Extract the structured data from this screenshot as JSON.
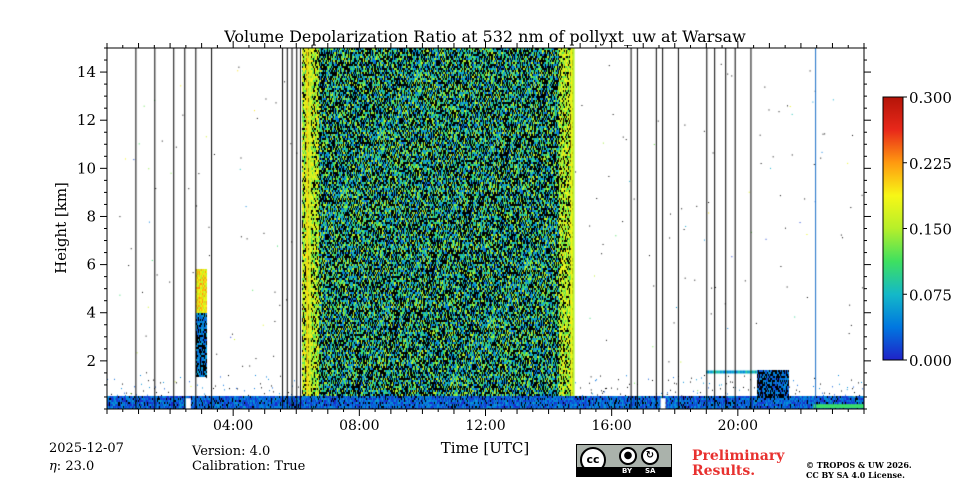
{
  "chart_data": {
    "type": "heatmap",
    "title": "Volume Depolarization Ratio at 532 nm of pollyxt_uw at Warsaw",
    "xlabel": "Time [UTC]",
    "ylabel": "Height [km]",
    "xlim_hours": [
      0,
      24
    ],
    "ylim_km": [
      0,
      15
    ],
    "x_ticks": [
      {
        "hour": 4,
        "label": "04:00"
      },
      {
        "hour": 8,
        "label": "08:00"
      },
      {
        "hour": 12,
        "label": "12:00"
      },
      {
        "hour": 16,
        "label": "16:00"
      },
      {
        "hour": 20,
        "label": "20:00"
      }
    ],
    "y_ticks": [
      {
        "km": 2,
        "label": "2"
      },
      {
        "km": 4,
        "label": "4"
      },
      {
        "km": 6,
        "label": "6"
      },
      {
        "km": 8,
        "label": "8"
      },
      {
        "km": 10,
        "label": "10"
      },
      {
        "km": 12,
        "label": "12"
      },
      {
        "km": 14,
        "label": "14"
      }
    ],
    "colorbar": {
      "min": 0.0,
      "max": 0.3,
      "ticks": [
        {
          "value": 0.0,
          "label": "0.000"
        },
        {
          "value": 0.075,
          "label": "0.075"
        },
        {
          "value": 0.15,
          "label": "0.150"
        },
        {
          "value": 0.225,
          "label": "0.225"
        },
        {
          "value": 0.3,
          "label": "0.300"
        }
      ],
      "colormap": [
        "#1f22c8",
        "#0077e0",
        "#14b8c8",
        "#3ee060",
        "#b6ef2a",
        "#f7f716",
        "#ff9a10",
        "#e8281a",
        "#b41408"
      ]
    },
    "noise_band_hours": [
      6.2,
      14.8
    ],
    "noise_band_edge_hours": [
      6.2,
      6.7,
      14.3,
      14.8
    ],
    "boundary_layer_top_km": 0.5,
    "vertical_gap_lines_hours": [
      0.9,
      1.5,
      2.1,
      2.45,
      2.8,
      3.3,
      5.55,
      5.7,
      5.85,
      6.0,
      6.12,
      16.6,
      16.8,
      17.4,
      17.6,
      18.1,
      19.0,
      19.25,
      19.6,
      19.9,
      20.4,
      22.45
    ],
    "white_gaps_hours": [
      2.5,
      17.55
    ],
    "aerosol_layer": {
      "start_hour": 2.85,
      "end_hour": 3.15,
      "bottom_km": 1.4,
      "top_km": 5.8
    },
    "evening_layer": {
      "start_hour": 19.0,
      "end_hour": 21.6,
      "bottom_km": 1.3,
      "top_km": 1.6
    }
  },
  "info": {
    "date": "2025-12-07",
    "eta": "23.0",
    "version": "Version: 4.0",
    "calibration": "Calibration: True"
  },
  "license": {
    "badge_cc": "cc",
    "badge_by": "BY",
    "badge_sa": "SA",
    "preliminary_line1": "Preliminary",
    "preliminary_line2": "Results.",
    "copyright_line1": "© TROPOS & UW 2026.",
    "copyright_line2": "CC BY SA 4.0 License."
  }
}
